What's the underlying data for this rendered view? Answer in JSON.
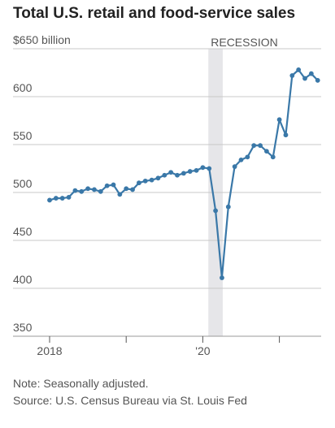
{
  "title": "Total U.S. retail and food-service sales",
  "notes": {
    "note": "Note: Seasonally adjusted.",
    "source": "Source: U.S. Census Bureau via St. Louis Fed"
  },
  "colors": {
    "line": "#3a78a8",
    "recession": "#e6e6e9",
    "grid": "#c8c8c8"
  },
  "chart_data": {
    "type": "line",
    "title": "Total U.S. retail and food-service sales",
    "xlabel": "",
    "ylabel": "",
    "ylim": [
      350,
      650
    ],
    "yticks": [
      350,
      400,
      450,
      500,
      550,
      600,
      650
    ],
    "ytick_labels": [
      "350",
      "400",
      "450",
      "500",
      "550",
      "600",
      "$650 billion"
    ],
    "xticks": [
      "2018-01",
      "2019-01",
      "2020-01",
      "2021-01"
    ],
    "xtick_labels": [
      "2018",
      "",
      "'20",
      ""
    ],
    "xlim": [
      "2018-01",
      "2021-07"
    ],
    "grid": true,
    "annotations": [
      {
        "text": "RECESSION",
        "start": "2020-02",
        "end": "2020-04"
      }
    ],
    "series": [
      {
        "x": [
          "2018-01",
          "2018-02",
          "2018-03",
          "2018-04",
          "2018-05",
          "2018-06",
          "2018-07",
          "2018-08",
          "2018-09",
          "2018-10",
          "2018-11",
          "2018-12",
          "2019-01",
          "2019-02",
          "2019-03",
          "2019-04",
          "2019-05",
          "2019-06",
          "2019-07",
          "2019-08",
          "2019-09",
          "2019-10",
          "2019-11",
          "2019-12",
          "2020-01",
          "2020-02",
          "2020-03",
          "2020-04",
          "2020-05",
          "2020-06",
          "2020-07",
          "2020-08",
          "2020-09",
          "2020-10",
          "2020-11",
          "2020-12",
          "2021-01",
          "2021-02",
          "2021-03",
          "2021-04",
          "2021-05",
          "2021-06",
          "2021-07"
        ],
        "values": [
          492,
          494,
          494,
          495,
          502,
          501,
          504,
          503,
          501,
          507,
          508,
          498,
          504,
          503,
          510,
          512,
          513,
          515,
          518,
          521,
          518,
          520,
          522,
          523,
          526,
          525,
          481,
          411,
          485,
          527,
          534,
          537,
          549,
          549,
          543,
          537,
          576,
          560,
          622,
          628,
          619,
          624,
          617
        ]
      }
    ]
  }
}
